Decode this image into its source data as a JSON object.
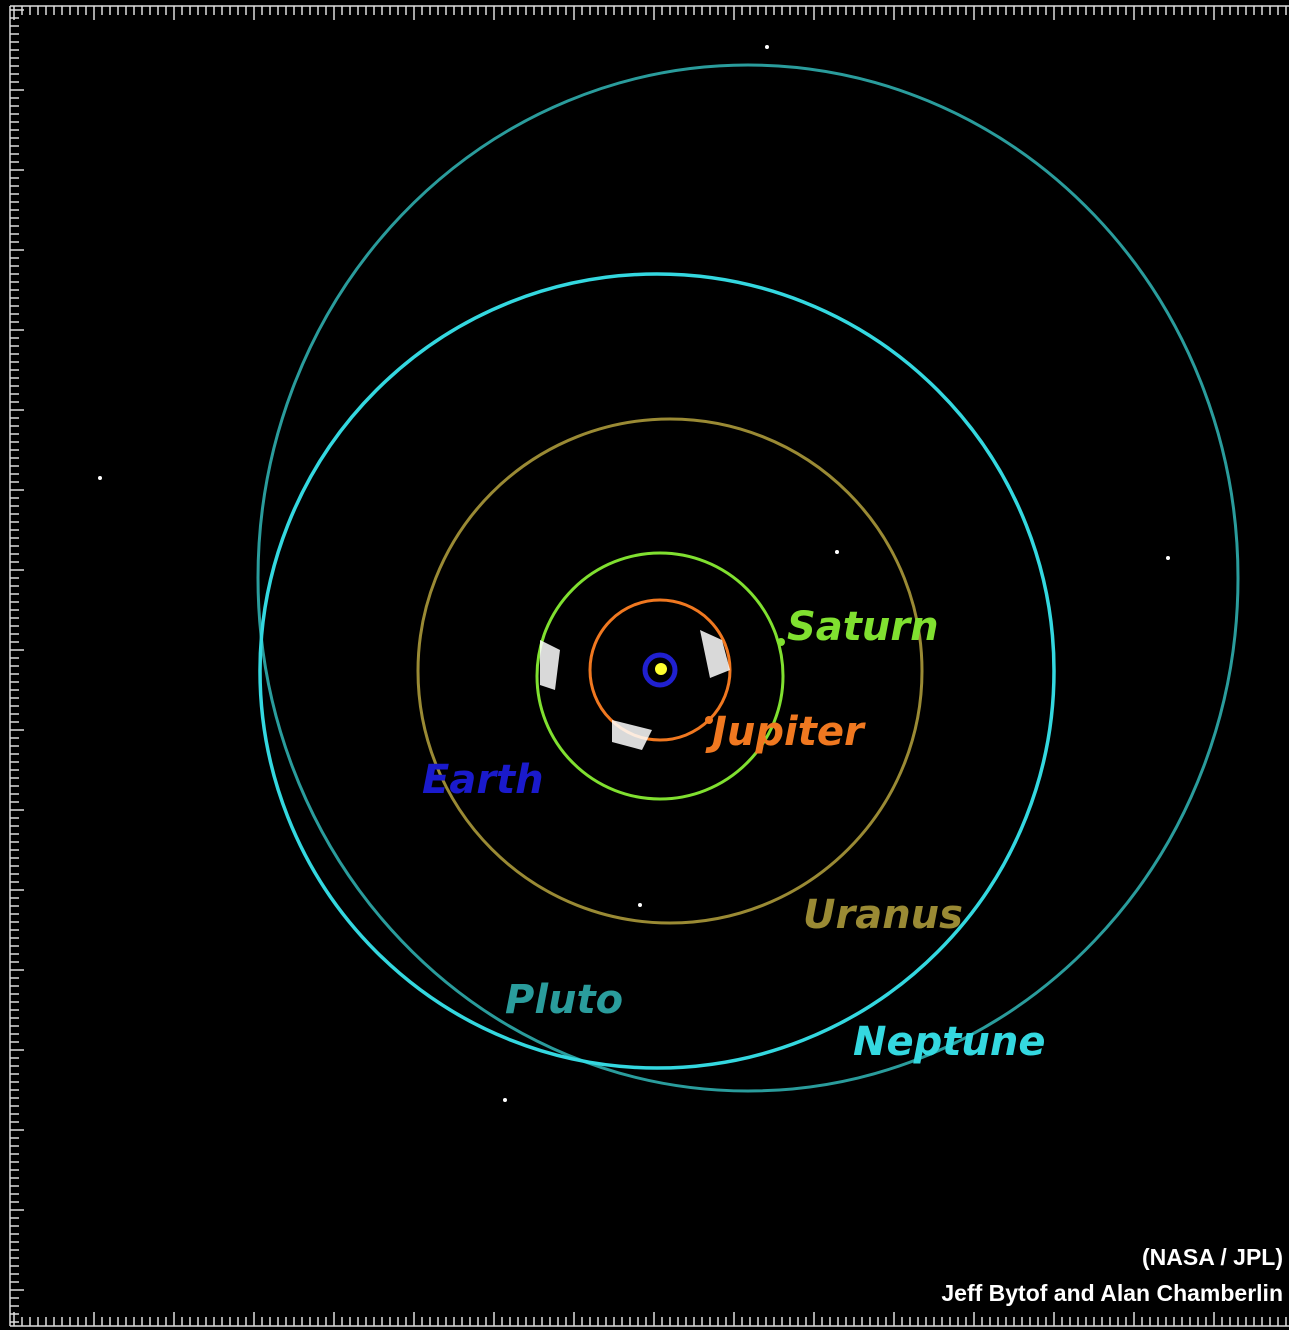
{
  "planets": {
    "saturn": "Saturn",
    "jupiter": "Jupiter",
    "earth": "Earth",
    "uranus": "Uranus",
    "pluto": "Pluto",
    "neptune": "Neptune"
  },
  "credit": {
    "source": "(NASA / JPL)",
    "authors": "Jeff Bytof and Alan Chamberlin"
  }
}
